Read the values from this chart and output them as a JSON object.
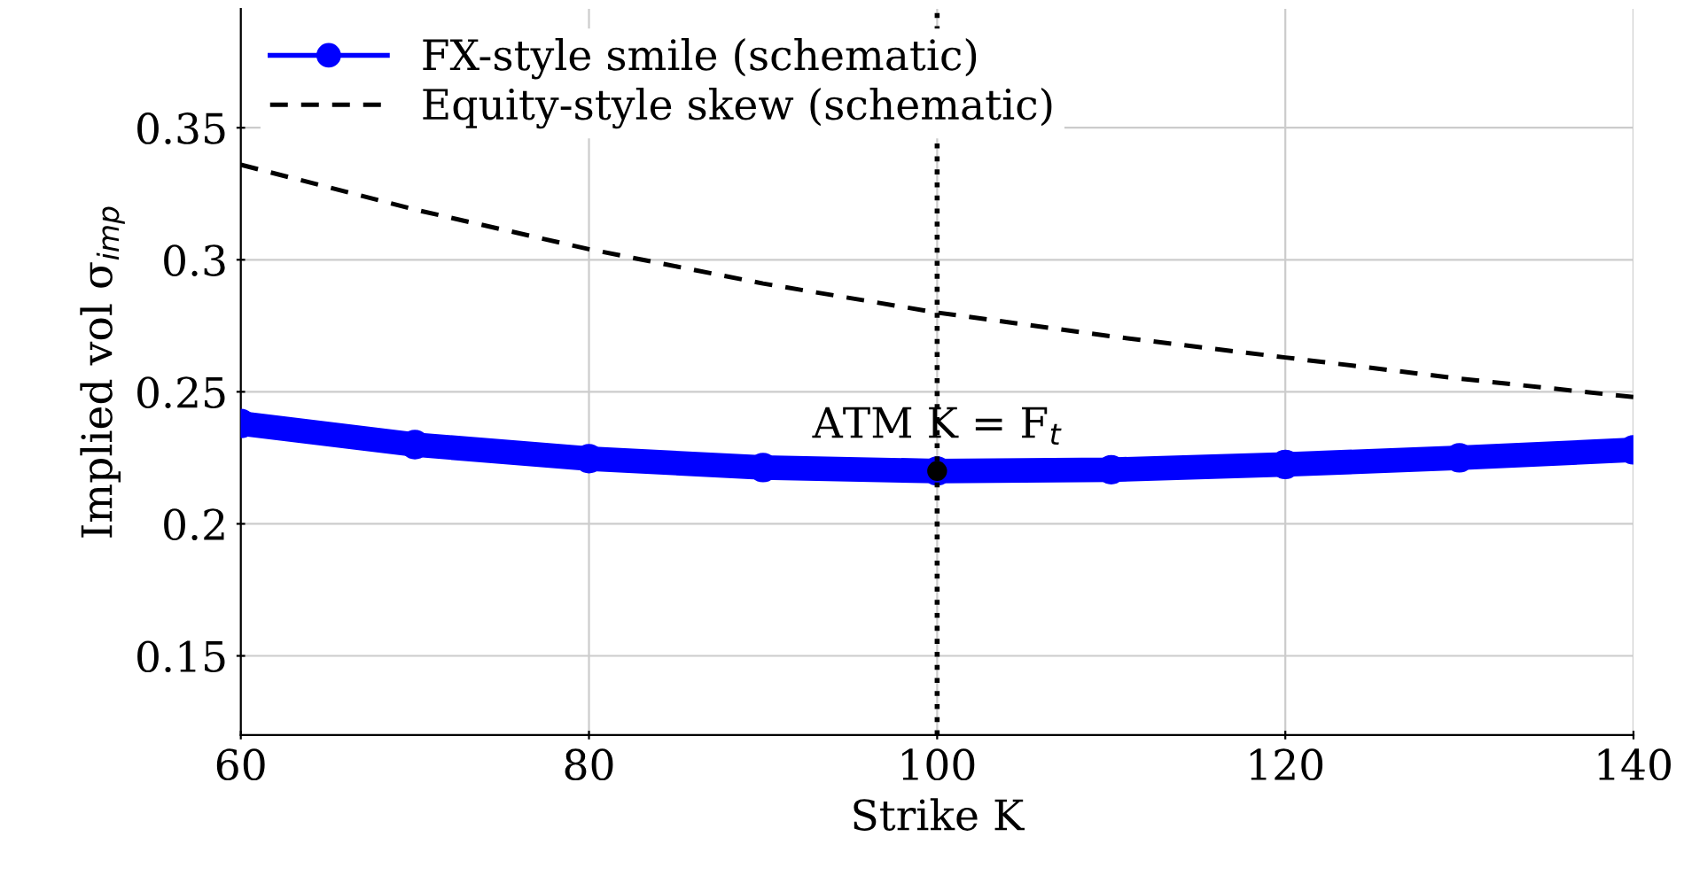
{
  "chart_data": {
    "type": "line",
    "xlabel": "Strike K",
    "ylabel": "Implied vol σ$_{imp}$",
    "xlim": [
      60,
      140
    ],
    "xticks": [
      60,
      80,
      100,
      120,
      140
    ],
    "ylim": [
      0.12,
      0.395
    ],
    "yticks": [
      0.15,
      0.2,
      0.25,
      0.3,
      0.35
    ],
    "grid": true,
    "legend": "top left",
    "series": [
      {
        "name": "FX-style smile (schematic)",
        "color": "#0000ff",
        "marker": "circle",
        "line_style": "solid",
        "x": [
          60,
          70,
          80,
          90,
          100,
          110,
          120,
          130,
          140
        ],
        "values": [
          0.238,
          0.23,
          0.2247,
          0.2213,
          0.22,
          0.2205,
          0.2225,
          0.225,
          0.228
        ]
      },
      {
        "name": "Equity-style skew (schematic)",
        "color": "#000000",
        "marker": "none",
        "line_style": "dashed",
        "x": [
          60,
          70,
          80,
          90,
          100,
          110,
          120,
          130,
          140
        ],
        "values": [
          0.336,
          0.319,
          0.304,
          0.291,
          0.28,
          0.271,
          0.263,
          0.255,
          0.248
        ]
      },
      {
        "type": "scatter",
        "color": "#000000",
        "marker": "circle",
        "x": [
          100
        ],
        "values": [
          0.22
        ]
      }
    ],
    "ref_lines": [
      {
        "axis": "x",
        "value": 100,
        "color": "#000000",
        "line_style": "dotted"
      }
    ],
    "annotations": [
      {
        "text": "ATM K = F$_{t}$",
        "x": 100,
        "y": 0.22
      }
    ]
  }
}
